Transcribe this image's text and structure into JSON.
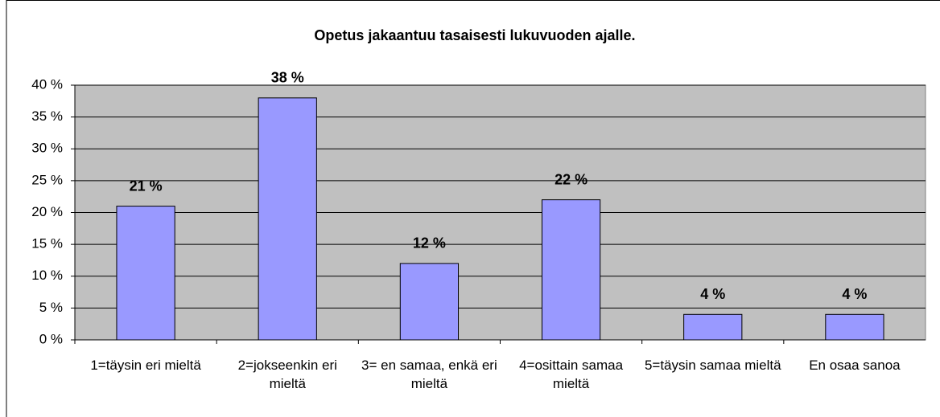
{
  "chart_data": {
    "type": "bar",
    "title": "Opetus jakaantuu tasaisesti lukuvuoden ajalle.",
    "categories": [
      "1=täysin eri mieltä",
      "2=jokseenkin eri mieltä",
      "3= en samaa, enkä eri mieltä",
      "4=osittain samaa mieltä",
      "5=täysin samaa mieltä",
      "En osaa sanoa"
    ],
    "values": [
      21,
      38,
      12,
      22,
      4,
      4
    ],
    "value_labels": [
      "21 %",
      "38 %",
      "12 %",
      "22 %",
      "4 %",
      "4 %"
    ],
    "color": "#9999ff",
    "ylim": [
      0,
      40
    ],
    "yticks": [
      {
        "value": 0,
        "label": "0 %"
      },
      {
        "value": 5,
        "label": "5 %"
      },
      {
        "value": 10,
        "label": "10 %"
      },
      {
        "value": 15,
        "label": "15 %"
      },
      {
        "value": 20,
        "label": "20 %"
      },
      {
        "value": 25,
        "label": "25 %"
      },
      {
        "value": 30,
        "label": "30 %"
      },
      {
        "value": 35,
        "label": "35 %"
      },
      {
        "value": 40,
        "label": "40 %"
      }
    ],
    "grid": true
  }
}
